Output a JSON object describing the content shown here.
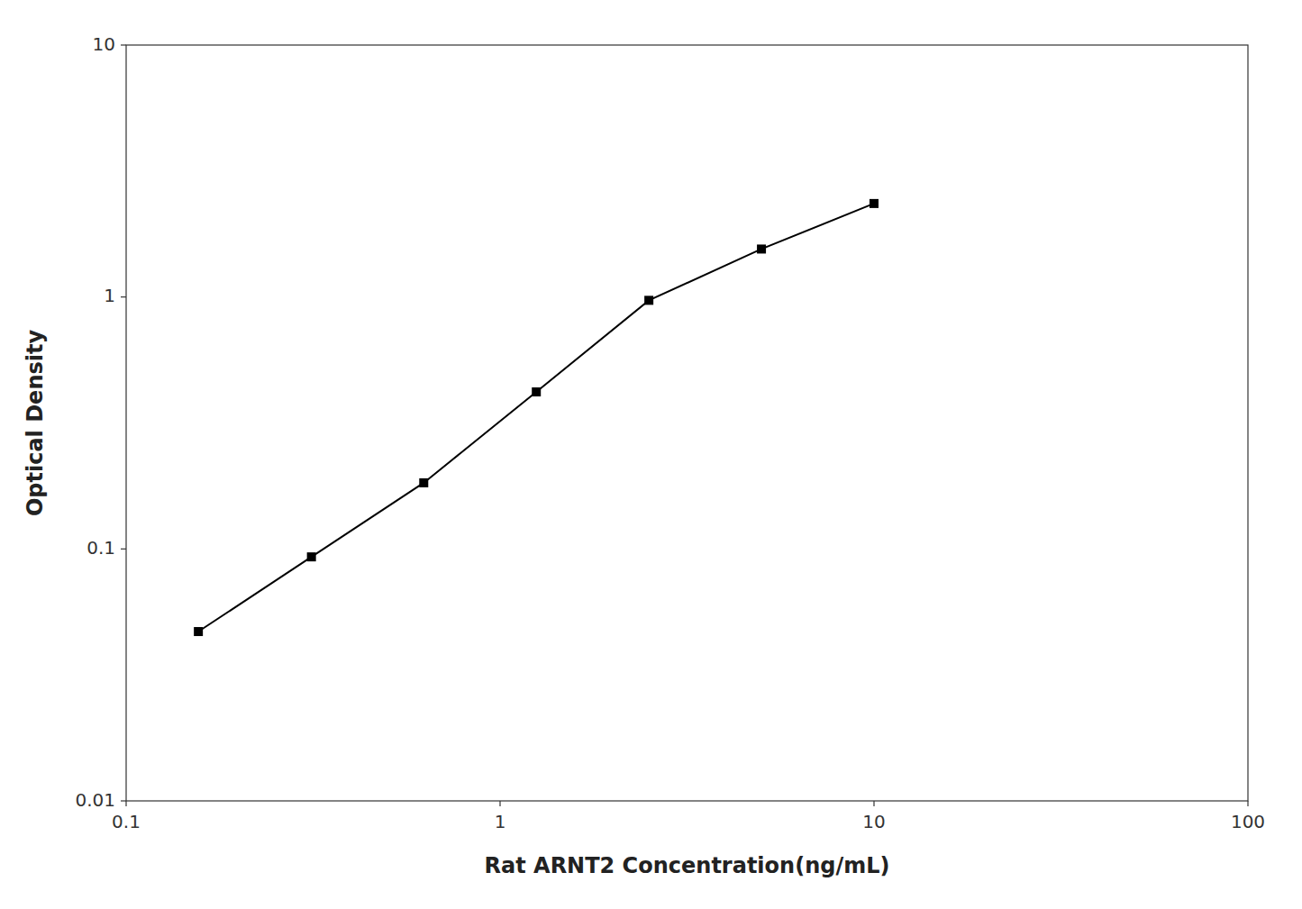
{
  "chart_data": {
    "type": "line",
    "x": [
      0.156,
      0.313,
      0.625,
      1.25,
      2.5,
      5.0,
      10.0
    ],
    "values": [
      0.047,
      0.093,
      0.183,
      0.42,
      0.97,
      1.55,
      2.35
    ],
    "xlabel": "Rat ARNT2 Concentration(ng/mL)",
    "ylabel": "Optical Density",
    "xlim": [
      0.1,
      100
    ],
    "ylim": [
      0.01,
      10
    ],
    "xticks": [
      0.1,
      1,
      10,
      100
    ],
    "yticks": [
      0.01,
      0.1,
      1,
      10
    ],
    "log": true,
    "grid": false,
    "color": "#000000",
    "marker": "square"
  }
}
